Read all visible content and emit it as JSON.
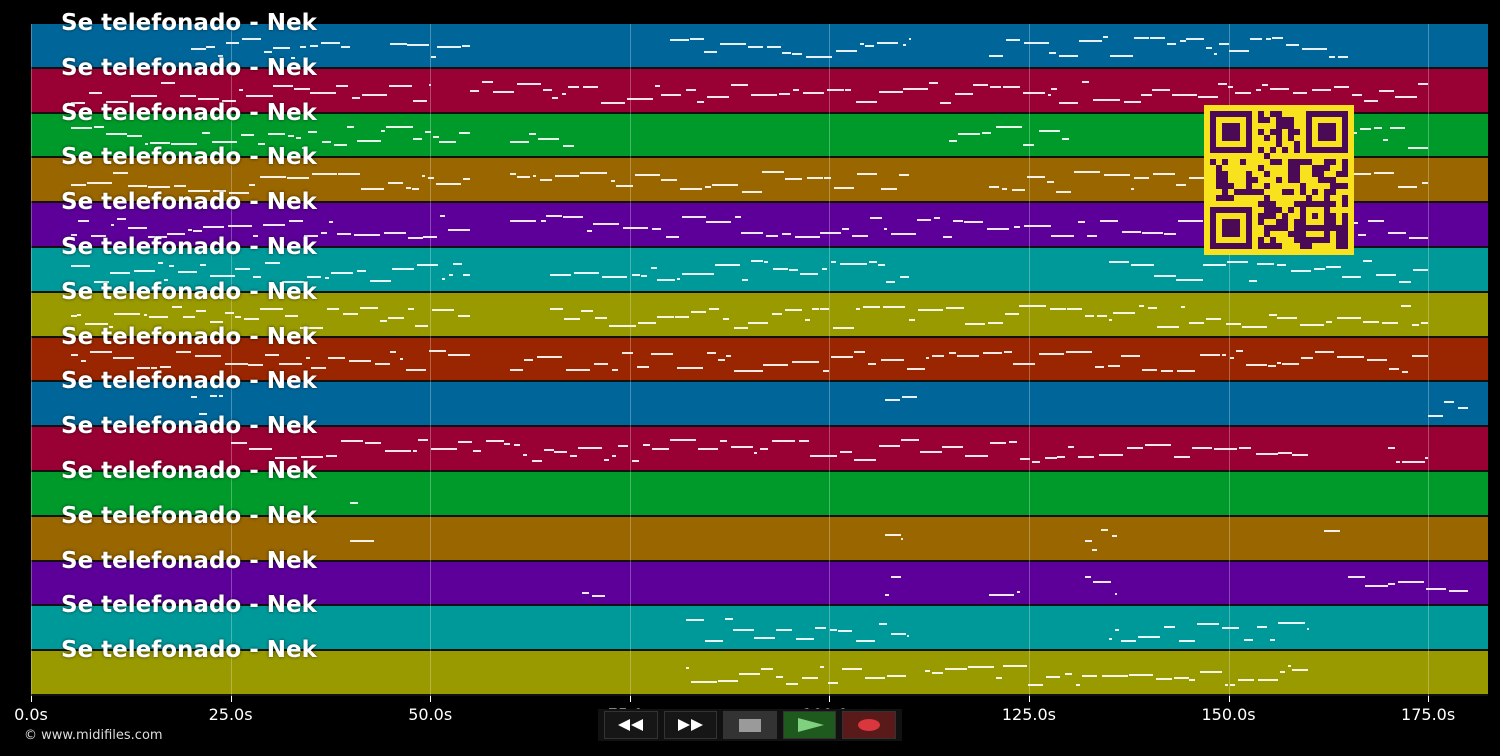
{
  "song_title": "Se telefonado - Nek",
  "tracks": [
    {
      "label": "Se telefonado - Nek",
      "color": "#00669a"
    },
    {
      "label": "Se telefonado - Nek",
      "color": "#990033"
    },
    {
      "label": "Se telefonado - Nek",
      "color": "#009a2a"
    },
    {
      "label": "Se telefonado - Nek",
      "color": "#996600"
    },
    {
      "label": "Se telefonado - Nek",
      "color": "#5c0099"
    },
    {
      "label": "Se telefonado - Nek",
      "color": "#009999"
    },
    {
      "label": "Se telefonado - Nek",
      "color": "#999900"
    },
    {
      "label": "Se telefonado - Nek",
      "color": "#992600"
    },
    {
      "label": "Se telefonado - Nek",
      "color": "#00669a"
    },
    {
      "label": "Se telefonado - Nek",
      "color": "#990033"
    },
    {
      "label": "Se telefonado - Nek",
      "color": "#009a2a"
    },
    {
      "label": "Se telefonado - Nek",
      "color": "#996600"
    },
    {
      "label": "Se telefonado - Nek",
      "color": "#5c0099"
    },
    {
      "label": "Se telefonado - Nek",
      "color": "#009999"
    },
    {
      "label": "Se telefonado - Nek",
      "color": "#999900"
    }
  ],
  "time_axis": {
    "max_seconds": 182.5,
    "ticks": [
      "0.0s",
      "25.0s",
      "50.0s",
      "75.0s",
      "100.0s",
      "125.0s",
      "150.0s",
      "175.0s"
    ]
  },
  "copyright": "© www.midifiles.com",
  "transport": {
    "rewind_icon": "rewind-icon",
    "fast_forward_icon": "fast-forward-icon",
    "stop_icon": "stop-icon",
    "play_icon": "play-icon",
    "record_icon": "record-icon"
  },
  "qr_color": "#f8e21e"
}
